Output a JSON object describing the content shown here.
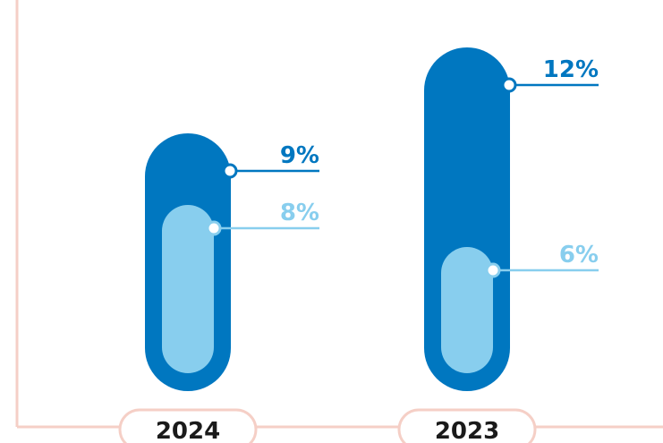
{
  "chart_data": {
    "type": "bar",
    "categories": [
      "2024",
      "2023"
    ],
    "series": [
      {
        "values": [
          9,
          12
        ],
        "labels": [
          "9%",
          "12%"
        ],
        "color": "#0077c0"
      },
      {
        "values": [
          8,
          6
        ],
        "labels": [
          "8%",
          "6%"
        ],
        "color": "#88ceee"
      }
    ],
    "title": "",
    "xlabel": "",
    "ylabel": "",
    "unit": "%",
    "ylim": [
      0,
      13
    ],
    "grid": false,
    "colors": {
      "axis": "#f5cfc6",
      "year_text": "#1a1a1a"
    }
  }
}
